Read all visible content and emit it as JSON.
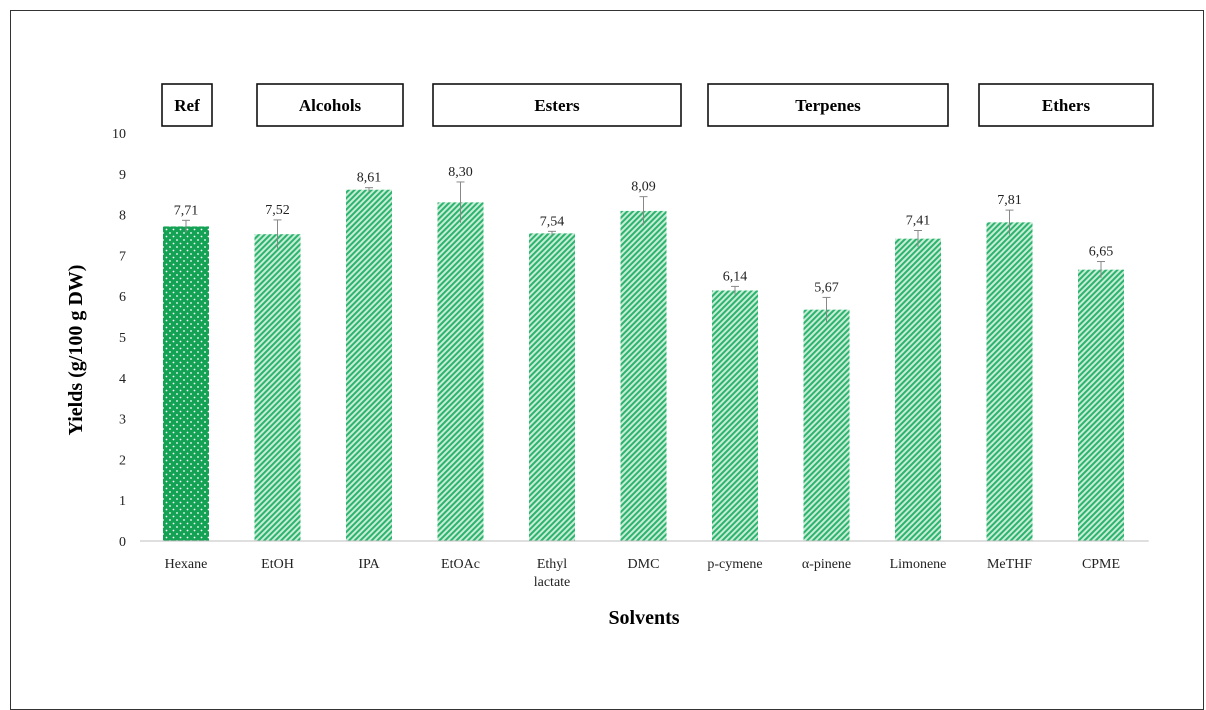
{
  "chart_data": {
    "type": "bar",
    "xlabel": "Solvents",
    "ylabel": "Yields (g/100 g DW)",
    "ylim": [
      0,
      10
    ],
    "yticks": [
      0,
      1,
      2,
      3,
      4,
      5,
      6,
      7,
      8,
      9,
      10
    ],
    "categories": [
      {
        "label_lines": [
          "Hexane"
        ]
      },
      {
        "label_lines": [
          "EtOH"
        ]
      },
      {
        "label_lines": [
          "IPA"
        ]
      },
      {
        "label_lines": [
          "EtOAc"
        ]
      },
      {
        "label_lines": [
          "Ethyl",
          "lactate"
        ]
      },
      {
        "label_lines": [
          "DMC"
        ]
      },
      {
        "label_lines": [
          "p-cymene"
        ]
      },
      {
        "label_lines": [
          "α-pinene"
        ]
      },
      {
        "label_lines": [
          "Limonene"
        ]
      },
      {
        "label_lines": [
          "MeTHF"
        ]
      },
      {
        "label_lines": [
          "CPME"
        ]
      }
    ],
    "values": [
      7.71,
      7.52,
      8.61,
      8.3,
      7.54,
      8.09,
      6.14,
      5.67,
      7.41,
      7.81,
      6.65
    ],
    "value_labels": [
      "7,71",
      "7,52",
      "8,61",
      "8,30",
      "7,54",
      "8,09",
      "6,14",
      "5,67",
      "7,41",
      "7,81",
      "6,65"
    ],
    "errors": [
      0.15,
      0.35,
      0.05,
      0.5,
      0.05,
      0.35,
      0.1,
      0.3,
      0.2,
      0.3,
      0.2
    ],
    "groups": [
      {
        "label": "Ref",
        "from": 0,
        "to": 0
      },
      {
        "label": "Alcohols",
        "from": 1,
        "to": 2
      },
      {
        "label": "Esters",
        "from": 3,
        "to": 5
      },
      {
        "label": "Terpenes",
        "from": 6,
        "to": 8
      },
      {
        "label": "Ethers",
        "from": 9,
        "to": 10
      }
    ],
    "colors": {
      "reference_bar": "#13a153",
      "bar_hatch": "#2bb46e",
      "bar_background": "#c8ecd6",
      "error_bar": "#888888"
    },
    "reference_index": 0,
    "grid": false,
    "legend": "none"
  }
}
